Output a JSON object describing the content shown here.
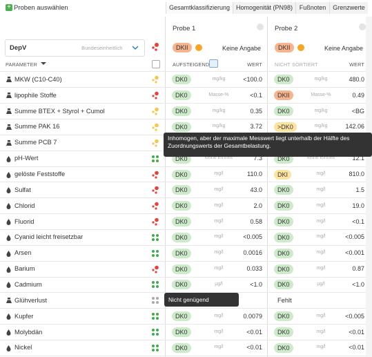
{
  "toolbar": {
    "add_samples": "Proben auswählen"
  },
  "tabs": [
    "Gesamtklassifizierung",
    "Homogenität (PN98)",
    "Fußnoten",
    "Grenzwerte"
  ],
  "regulation": {
    "name": "DepV",
    "scope": "Bundeseinheitlich"
  },
  "parameter_header": "PARAMETER",
  "class_colors": {
    "DK0": "#cdeacb",
    "DKII": "#f6b48f",
    "DKI": "#fde3a0",
    ">DK0": "#fde3a0"
  },
  "samples": [
    {
      "name": "Probe 1",
      "class": "DKII",
      "note": "Keine Angabe",
      "sort": "AUFSTEIGEND",
      "value_header": "WERT"
    },
    {
      "name": "Probe 2",
      "class": "DKII",
      "note": "Keine Angabe",
      "sort": "NICHT SORTIERT",
      "value_header": "WERT"
    }
  ],
  "rows": [
    {
      "name": "MKW (C10-C40)",
      "icon": "solid",
      "indicator_color": "#f6c64f",
      "homogeneous": false,
      "p1": {
        "class": "DK0",
        "unit": "mg/kg",
        "value": "<100.0"
      },
      "p2": {
        "class": "DK0",
        "unit": "mg/kg",
        "value": "480.0"
      }
    },
    {
      "name": "lipophile Stoffe",
      "icon": "solid",
      "indicator_color": "#e8403a",
      "homogeneous": false,
      "p1": {
        "class": "DK0",
        "unit": "Masse-%",
        "value": "<0.1"
      },
      "p2": {
        "class": "DKII",
        "unit": "Masse-%",
        "value": "0.49"
      }
    },
    {
      "name": "Summe BTEX + Styrol + Cumol",
      "icon": "solid",
      "indicator_color": "#f6c64f",
      "homogeneous": false,
      "p1": {
        "class": "DK0",
        "unit": "mg/kg",
        "value": "0.35"
      },
      "p2": {
        "class": "DK0",
        "unit": "mg/kg",
        "value": "<BG"
      }
    },
    {
      "name": "Summe PAK 16",
      "icon": "solid",
      "indicator_color": "#f6c64f",
      "homogeneous": false,
      "p1": {
        "class": "DK0",
        "unit": "mg/kg",
        "value": "3.72"
      },
      "p2": {
        "class": ">DK0",
        "unit": "mg/kg",
        "value": "142.06"
      }
    },
    {
      "name": "Summe PCB 7",
      "icon": "solid",
      "indicator_color": "#f6c64f",
      "homogeneous": false
    },
    {
      "name": "pH-Wert",
      "icon": "eluate",
      "indicator_color": "#3dae49",
      "homogeneous": true,
      "p1": {
        "class": "DK0",
        "unit": "keine Einheit",
        "value": "7.3"
      },
      "p2": {
        "class": "DK0",
        "unit": "keine Einheit",
        "value": "12.1"
      }
    },
    {
      "name": "gelöste Feststoffe",
      "icon": "eluate",
      "indicator_color": "#e8403a",
      "homogeneous": false,
      "p1": {
        "class": "DK0",
        "unit": "mg/l",
        "value": "110.0"
      },
      "p2": {
        "class": "DKI",
        "unit": "mg/l",
        "value": "810.0"
      }
    },
    {
      "name": "Sulfat",
      "icon": "eluate",
      "indicator_color": "#e8403a",
      "homogeneous": false,
      "p1": {
        "class": "DK0",
        "unit": "mg/l",
        "value": "43.0"
      },
      "p2": {
        "class": "DK0",
        "unit": "mg/l",
        "value": "1.5"
      }
    },
    {
      "name": "Chlorid",
      "icon": "eluate",
      "indicator_color": "#e8403a",
      "homogeneous": false,
      "p1": {
        "class": "DK0",
        "unit": "mg/l",
        "value": "2.0"
      },
      "p2": {
        "class": "DK0",
        "unit": "mg/l",
        "value": "19.0"
      }
    },
    {
      "name": "Fluorid",
      "icon": "eluate",
      "indicator_color": "#e8403a",
      "homogeneous": false,
      "p1": {
        "class": "DK0",
        "unit": "mg/l",
        "value": "0.58"
      },
      "p2": {
        "class": "DK0",
        "unit": "mg/l",
        "value": "<0.1"
      }
    },
    {
      "name": "Cyanid leicht freisetzbar",
      "icon": "eluate",
      "indicator_color": "#3dae49",
      "homogeneous": true,
      "p1": {
        "class": "DK0",
        "unit": "mg/l",
        "value": "<0.005"
      },
      "p2": {
        "class": "DK0",
        "unit": "mg/l",
        "value": "<0.005"
      }
    },
    {
      "name": "Arsen",
      "icon": "eluate",
      "indicator_color": "#3dae49",
      "homogeneous": true,
      "p1": {
        "class": "DK0",
        "unit": "mg/l",
        "value": "0.0016"
      },
      "p2": {
        "class": "DK0",
        "unit": "mg/l",
        "value": "<0.001"
      }
    },
    {
      "name": "Barium",
      "icon": "eluate",
      "indicator_color": "#e8403a",
      "homogeneous": false,
      "p1": {
        "class": "DK0",
        "unit": "mg/l",
        "value": "0.033"
      },
      "p2": {
        "class": "DK0",
        "unit": "mg/l",
        "value": "0.87"
      }
    },
    {
      "name": "Cadmium",
      "icon": "eluate",
      "indicator_color": "#3dae49",
      "homogeneous": true,
      "p1": {
        "class": "DK0",
        "unit": "µg/l",
        "value": "<1.0"
      },
      "p2": {
        "class": "DK0",
        "unit": "µg/l",
        "value": "<1.0"
      }
    },
    {
      "name": "Glühverlust",
      "icon": "solid",
      "indicator_color": "#a9a9a9",
      "homogeneous": true,
      "p2": {
        "text": "Fehlt"
      }
    },
    {
      "name": "Kupfer",
      "icon": "eluate",
      "indicator_color": "#3dae49",
      "homogeneous": true,
      "p1": {
        "class": "DK0",
        "unit": "mg/l",
        "value": "0.0079"
      },
      "p2": {
        "class": "DK0",
        "unit": "mg/l",
        "value": "<0.005"
      }
    },
    {
      "name": "Molybdän",
      "icon": "eluate",
      "indicator_color": "#3dae49",
      "homogeneous": true,
      "p1": {
        "class": "DK0",
        "unit": "mg/l",
        "value": "<0.01"
      },
      "p2": {
        "class": "DK0",
        "unit": "mg/l",
        "value": "<0.01"
      }
    },
    {
      "name": "Nickel",
      "icon": "eluate",
      "indicator_color": "#3dae49",
      "homogeneous": true,
      "p1": {
        "class": "DK0",
        "unit": "mg/l",
        "value": "<0.01"
      },
      "p2": {
        "class": "DK0",
        "unit": "mg/l",
        "value": "<0.01"
      }
    }
  ],
  "tooltips": [
    "Inhomogen, aber der maximale Messwert liegt unterhalb der Hälfte des Zuordnungswerts der Gesamtbelastung.",
    "Nicht genügend Messwerte"
  ]
}
